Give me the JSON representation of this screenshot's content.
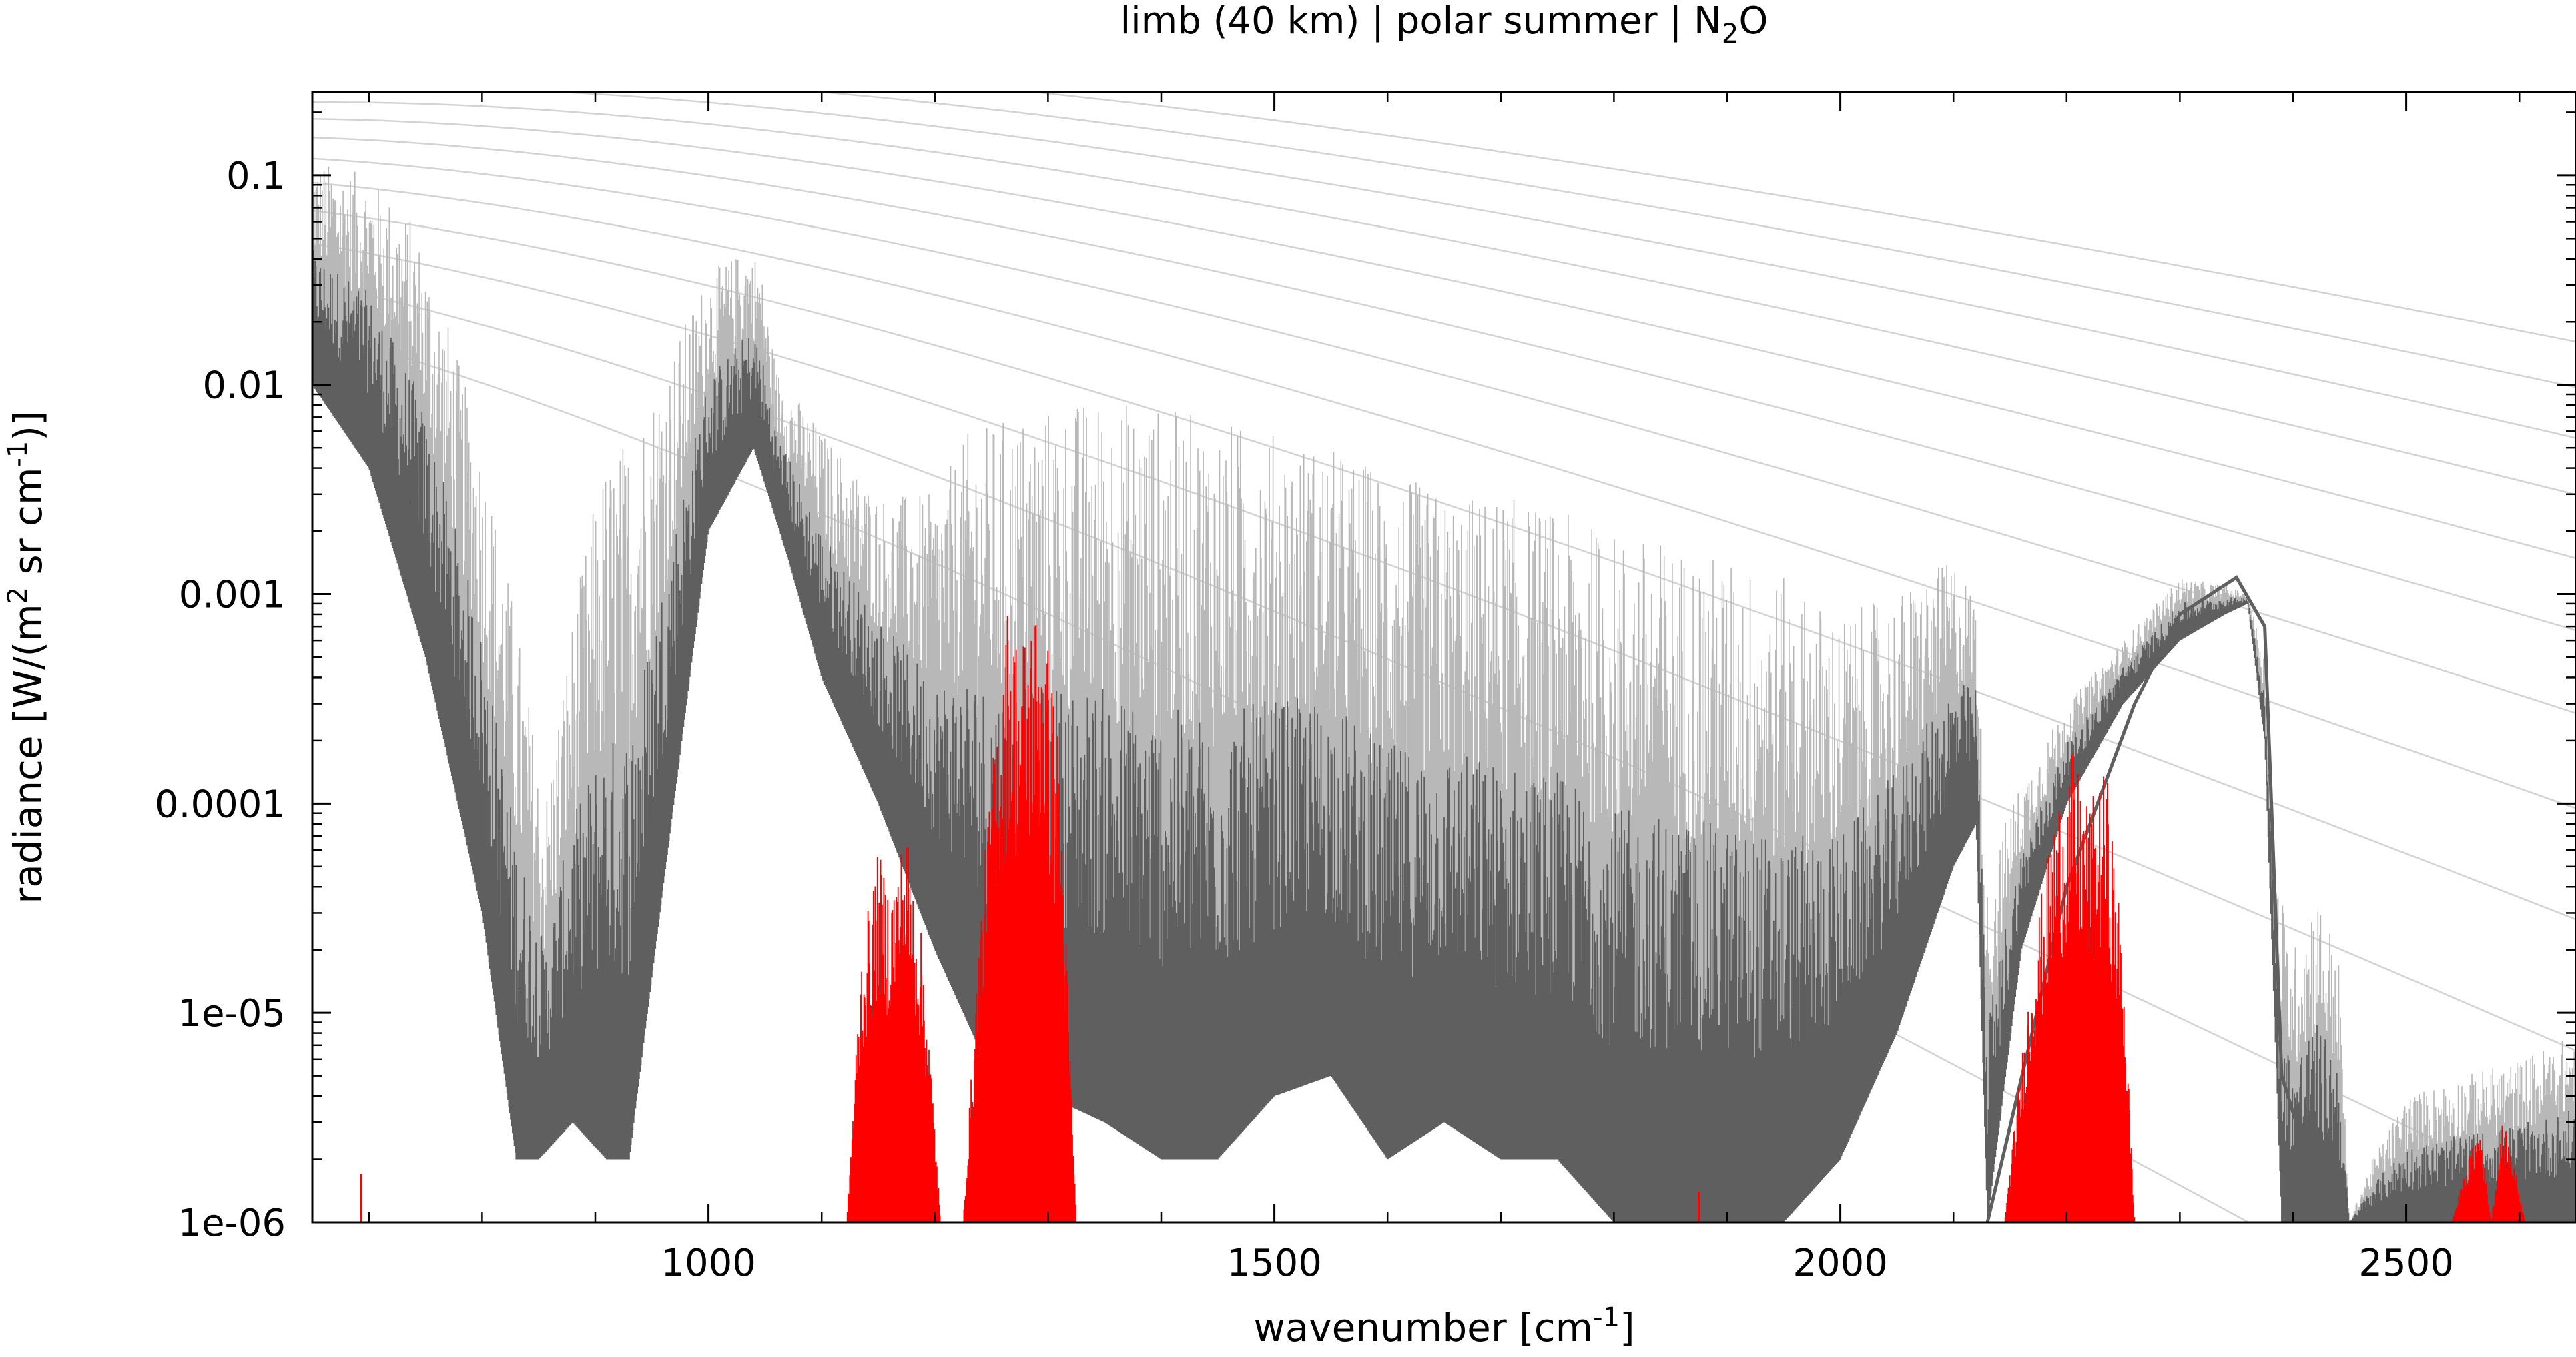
{
  "chart_data": {
    "type": "line",
    "title": {
      "prefix": "limb (40 km) | polar summer | N",
      "subscript": "2",
      "suffix": "O"
    },
    "xlabel": {
      "prefix": "wavenumber [cm",
      "superscript": "-1",
      "suffix": "]"
    },
    "ylabel": {
      "part1": "radiance [W/(m",
      "sup1": "2",
      "part2": " sr cm",
      "sup2": "-1",
      "part3": ")]"
    },
    "xlim": [
      650,
      2650
    ],
    "ylim": [
      1e-06,
      0.25
    ],
    "yscale": "log",
    "grid": false,
    "x_ticks": [
      1000,
      1500,
      2000,
      2500
    ],
    "x_tick_labels": [
      "1000",
      "1500",
      "2000",
      "2500"
    ],
    "y_ticks": [
      0.1,
      0.01,
      0.001,
      0.0001,
      1e-05,
      1e-06
    ],
    "y_tick_labels": [
      "0.1",
      "0.01",
      "0.001",
      "0.0001",
      "1e-05",
      "1e-06"
    ],
    "colors": {
      "total": "#5f5f5f",
      "total_upper": "#b8b8b8",
      "n2o": "#ff0000",
      "planck": "#d3d3d3"
    },
    "series": [
      {
        "role": "total",
        "upper_x": [
          650,
          700,
          740,
          770,
          800,
          830,
          855,
          880,
          905,
          930,
          960,
          1000,
          1035,
          1045,
          1060,
          1100,
          1150,
          1200,
          1230,
          1260,
          1300,
          1350,
          1400,
          1450,
          1500,
          1550,
          1600,
          1650,
          1700,
          1750,
          1800,
          1850,
          1900,
          1950,
          2000,
          2050,
          2100,
          2120,
          2130,
          2150,
          2200,
          2250,
          2300,
          2340,
          2360,
          2375,
          2385,
          2400,
          2420,
          2440,
          2450,
          2470,
          2500,
          2550,
          2600,
          2650
        ],
        "upper_y": [
          0.12,
          0.1,
          0.06,
          0.02,
          0.005,
          0.0008,
          0.0001,
          0.0008,
          0.004,
          0.006,
          0.012,
          0.035,
          0.045,
          0.04,
          0.012,
          0.006,
          0.003,
          0.003,
          0.006,
          0.007,
          0.008,
          0.009,
          0.008,
          0.007,
          0.006,
          0.005,
          0.004,
          0.003,
          0.003,
          0.0025,
          0.002,
          0.0018,
          0.0015,
          0.0012,
          0.0008,
          0.001,
          0.0015,
          0.001,
          4e-05,
          0.0001,
          0.0003,
          0.0006,
          0.0012,
          0.0011,
          0.001,
          0.0005,
          5e-05,
          2e-05,
          4e-05,
          2e-05,
          1e-06,
          2e-06,
          4e-06,
          5e-06,
          6e-06,
          8e-06
        ],
        "lower_x": [
          650,
          700,
          750,
          800,
          830,
          850,
          880,
          910,
          930,
          960,
          1000,
          1040,
          1070,
          1100,
          1150,
          1200,
          1250,
          1300,
          1350,
          1400,
          1450,
          1500,
          1550,
          1600,
          1650,
          1700,
          1750,
          1800,
          1850,
          1900,
          1950,
          2000,
          2050,
          2100,
          2120,
          2130,
          2160,
          2200,
          2250,
          2300,
          2340,
          2360,
          2375,
          2390,
          2420,
          2450,
          2500,
          2550,
          2600,
          2650
        ],
        "lower_y": [
          0.01,
          0.004,
          0.0005,
          3e-05,
          2e-06,
          2e-06,
          3e-06,
          2e-06,
          2e-06,
          4e-05,
          0.002,
          0.005,
          0.0015,
          0.0004,
          0.0001,
          2e-05,
          5e-06,
          4e-06,
          3e-06,
          2e-06,
          2e-06,
          4e-06,
          5e-06,
          2e-06,
          3e-06,
          2e-06,
          2e-06,
          1e-06,
          1e-06,
          1e-06,
          1e-06,
          2e-06,
          8e-06,
          5e-05,
          8e-05,
          1e-06,
          2e-05,
          0.0001,
          0.0003,
          0.0006,
          0.0008,
          0.0009,
          0.0002,
          1e-06,
          1e-06,
          1e-06,
          1e-06,
          1e-06,
          1e-06,
          1e-06
        ],
        "edge_upper_x": [
          2130,
          2200,
          2260,
          2300,
          2350,
          2375,
          2390,
          2430,
          2650
        ],
        "edge_upper_y": [
          1e-06,
          4e-05,
          0.0003,
          0.0008,
          0.0012,
          0.0007,
          5e-06,
          1e-06,
          1e-06
        ]
      },
      {
        "role": "n2o",
        "bands": [
          {
            "x": [
              1122,
              1135,
              1150,
              1160,
              1175,
              1190,
              1200,
              1205
            ],
            "y": [
              1e-06,
              2e-05,
              6e-05,
              4e-05,
              8e-05,
              2e-05,
              3e-06,
              1e-06
            ]
          },
          {
            "x": [
              1225,
              1240,
              1255,
              1265,
              1275,
              1285,
              1295,
              1310,
              1325
            ],
            "y": [
              1e-06,
              3e-05,
              0.0003,
              0.001,
              0.0006,
              0.0009,
              0.001,
              0.0002,
              1e-06
            ]
          },
          {
            "x": [
              2145,
              2170,
              2190,
              2205,
              2220,
              2235,
              2250,
              2260
            ],
            "y": [
              1e-06,
              2e-05,
              0.0001,
              0.00018,
              0.0001,
              0.00015,
              2e-05,
              1e-06
            ]
          },
          {
            "x": [
              2540,
              2555,
              2565,
              2575,
              2585,
              2595,
              2605
            ],
            "y": [
              1e-06,
              2e-06,
              3e-06,
              1e-06,
              3e-06,
              2e-06,
              1e-06
            ]
          }
        ],
        "spikes": [
          {
            "x": 693,
            "y": 1.7e-06
          },
          {
            "x": 1875,
            "y": 1.4e-06
          }
        ]
      },
      {
        "role": "planck",
        "x": [
          650,
          750,
          850,
          950,
          1050,
          1150,
          1250,
          1350,
          1450,
          1550,
          1650,
          1750,
          1850,
          1950,
          2050,
          2150,
          2250,
          2350,
          2450,
          2550,
          2650
        ],
        "temperatures": [
          180,
          200,
          220,
          240,
          260,
          280,
          300,
          320,
          340,
          360,
          380,
          400
        ]
      }
    ]
  }
}
